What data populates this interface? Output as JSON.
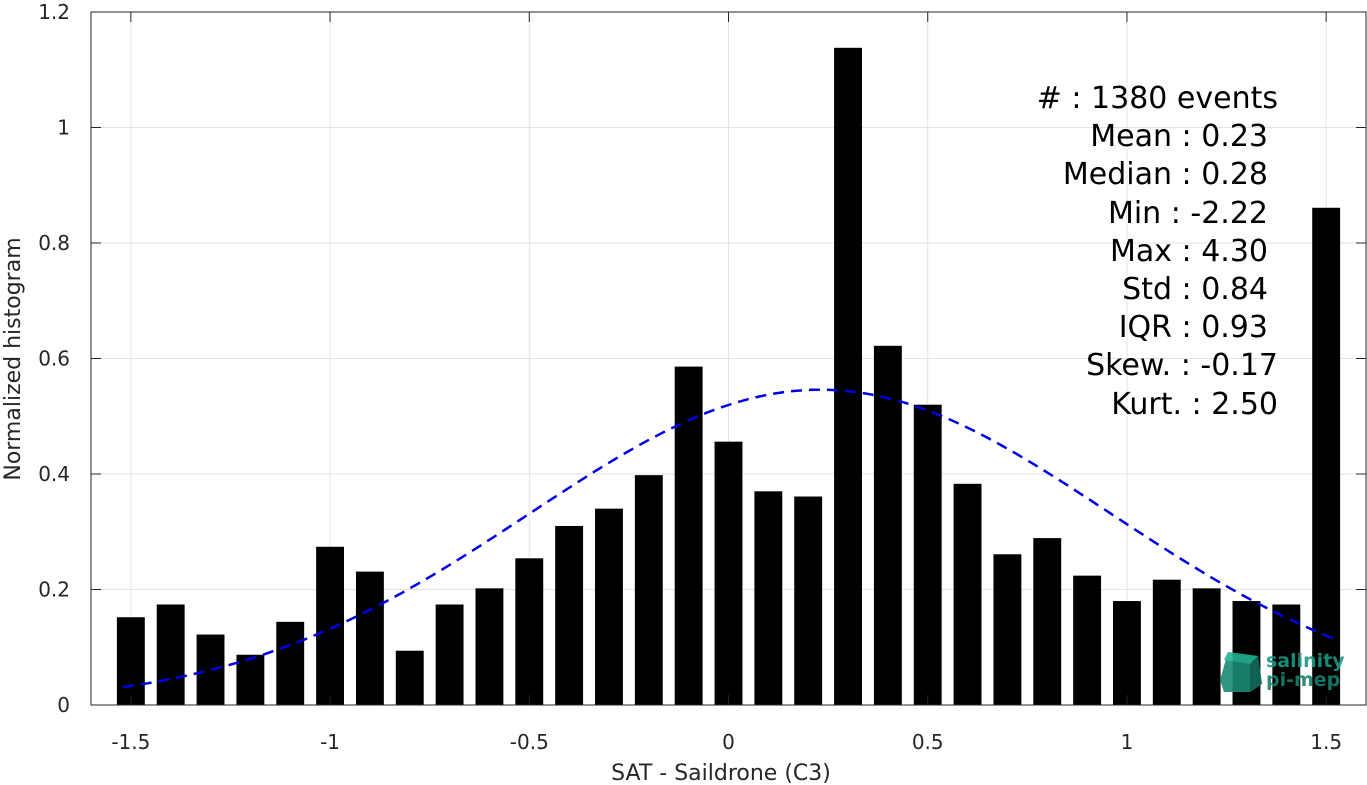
{
  "chart_data": {
    "type": "bar",
    "xlabel": "SAT - Saildrone (C3)",
    "ylabel": "Normalized histogram",
    "xlim": [
      -1.6,
      1.6
    ],
    "ylim": [
      0,
      1.2
    ],
    "xticks": [
      -1.5,
      -1,
      -0.5,
      0,
      0.5,
      1,
      1.5
    ],
    "xtick_labels": [
      "-1.5",
      "-1",
      "-0.5",
      "0",
      "0.5",
      "1",
      "1.5"
    ],
    "yticks": [
      0,
      0.2,
      0.4,
      0.6,
      0.8,
      1,
      1.2
    ],
    "ytick_labels": [
      "0",
      "0.2",
      "0.4",
      "0.6",
      "0.8",
      "1",
      "1.2"
    ],
    "grid": true,
    "bar_color": "#000000",
    "bar_width": 0.07,
    "x": [
      -1.5,
      -1.4,
      -1.3,
      -1.2,
      -1.1,
      -1.0,
      -0.9,
      -0.8,
      -0.7,
      -0.6,
      -0.5,
      -0.4,
      -0.3,
      -0.2,
      -0.1,
      0.0,
      0.1,
      0.2,
      0.3,
      0.4,
      0.5,
      0.6,
      0.7,
      0.8,
      0.9,
      1.0,
      1.1,
      1.2,
      1.3,
      1.4,
      1.5
    ],
    "values": [
      0.152,
      0.174,
      0.122,
      0.087,
      0.144,
      0.274,
      0.231,
      0.094,
      0.174,
      0.202,
      0.254,
      0.31,
      0.34,
      0.398,
      0.586,
      0.456,
      0.37,
      0.361,
      1.138,
      0.622,
      0.52,
      0.383,
      0.261,
      0.289,
      0.224,
      0.18,
      0.217,
      0.202,
      0.18,
      0.174,
      0.861
    ],
    "fit_curve": {
      "style": "dashed",
      "color": "#0000e6",
      "mean": 0.23,
      "std": 0.73,
      "peak": 0.546,
      "x_range": [
        -1.52,
        1.52
      ]
    }
  },
  "stats": [
    {
      "label": "#  : 1380 events"
    },
    {
      "label": "Mean : 0.23"
    },
    {
      "label": "Median : 0.28"
    },
    {
      "label": "Min : -2.22"
    },
    {
      "label": "Max : 4.30"
    },
    {
      "label": "Std : 0.84"
    },
    {
      "label": "IQR : 0.93"
    },
    {
      "label": "Skew. : -0.17"
    },
    {
      "label": "Kurt. : 2.50"
    }
  ],
  "logo": {
    "line1": "salinity",
    "line2": "pi-mep",
    "color": "#1a9a82"
  }
}
